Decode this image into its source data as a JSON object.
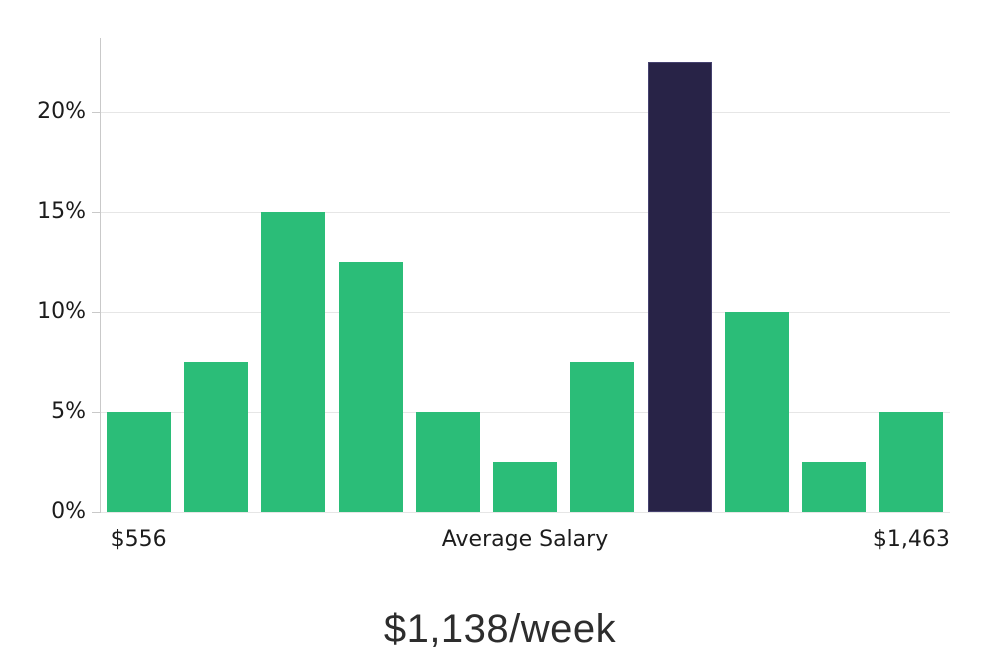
{
  "chart_data": {
    "type": "bar",
    "title": "$1,138/week",
    "unit": "%",
    "values": [
      5,
      7.5,
      15,
      12.5,
      5,
      2.5,
      7.5,
      22.5,
      10,
      2.5,
      5
    ],
    "highlight_index": 7,
    "bar_color": "#2bbd78",
    "highlight_color": "#282347",
    "highlight_border_color": "#45416f",
    "y_ticks": [
      {
        "value": 0,
        "label": "0%"
      },
      {
        "value": 5,
        "label": "5%"
      },
      {
        "value": 10,
        "label": "10%"
      },
      {
        "value": 15,
        "label": "15%"
      },
      {
        "value": 20,
        "label": "20%"
      }
    ],
    "x_labels": [
      {
        "bin": 0,
        "label": "$556"
      },
      {
        "bin": 5,
        "label": "Average Salary"
      },
      {
        "bin": 10,
        "label": "$1,463"
      }
    ],
    "ylim": [
      0,
      23.7
    ],
    "grid": true,
    "legend": "none"
  }
}
